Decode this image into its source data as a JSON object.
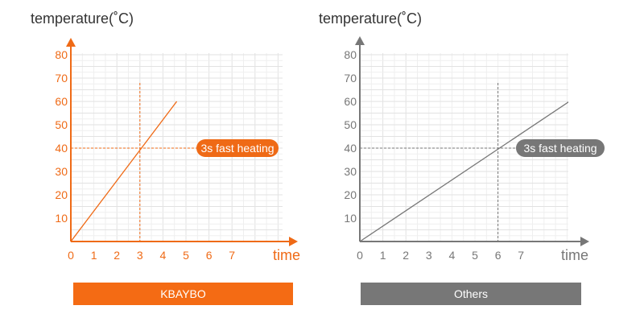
{
  "chart_data": [
    {
      "type": "line",
      "ylabel": "temperature(˚C)",
      "xlabel": "time",
      "color": "#ef6a16",
      "banner_label": "KBAYBO",
      "annotation": "3s fast heating",
      "x_ticks": [
        "0",
        "1",
        "2",
        "3",
        "4",
        "5",
        "6",
        "7"
      ],
      "y_ticks": [
        "10",
        "20",
        "30",
        "40",
        "50",
        "60",
        "70",
        "80"
      ],
      "xlim": [
        0,
        8.1
      ],
      "ylim": [
        0,
        80
      ],
      "grid": true,
      "series": [
        {
          "x": [
            0,
            4.6
          ],
          "y": [
            0,
            60
          ]
        }
      ],
      "reference": {
        "x": 3,
        "y": 40
      }
    },
    {
      "type": "line",
      "ylabel": "temperature(˚C)",
      "xlabel": "time",
      "color": "#777777",
      "banner_label": "Others",
      "annotation": "3s fast heating",
      "x_ticks": [
        "0",
        "1",
        "2",
        "3",
        "4",
        "5",
        "6",
        "7"
      ],
      "y_ticks": [
        "10",
        "20",
        "30",
        "40",
        "50",
        "60",
        "70",
        "80"
      ],
      "xlim": [
        0,
        8.1
      ],
      "ylim": [
        0,
        80
      ],
      "grid": true,
      "series": [
        {
          "x": [
            0,
            9.1
          ],
          "y": [
            0,
            60
          ]
        }
      ],
      "reference": {
        "x": 6,
        "y": 40
      }
    }
  ]
}
